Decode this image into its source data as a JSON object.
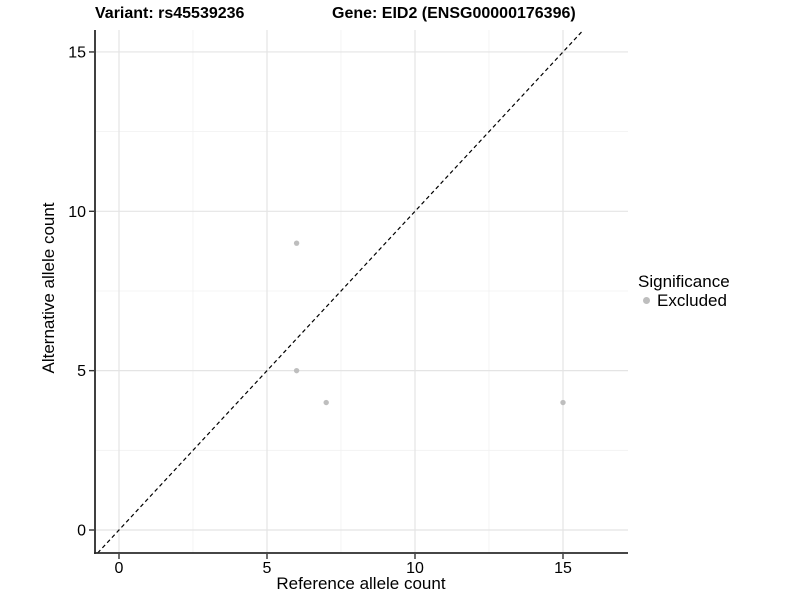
{
  "title": {
    "variant": "Variant: rs45539236",
    "gene": "Gene: EID2 (ENSG00000176396)"
  },
  "axes": {
    "x_label": "Reference allele count",
    "y_label": "Alternative allele count"
  },
  "legend": {
    "title": "Significance",
    "items": [
      {
        "label": "Excluded",
        "color": "#BEBEBE"
      }
    ]
  },
  "chart_data": {
    "type": "scatter",
    "title": "Variant: rs45539236   Gene: EID2 (ENSG00000176396)",
    "xlabel": "Reference allele count",
    "ylabel": "Alternative allele count",
    "x_ticks": [
      0,
      5,
      10,
      15
    ],
    "y_ticks": [
      0,
      5,
      10,
      15
    ],
    "x_minor_ticks": [
      2.5,
      7.5,
      12.5
    ],
    "y_minor_ticks": [
      2.5,
      7.5,
      12.5
    ],
    "xlim": [
      -0.8,
      17.2
    ],
    "ylim": [
      -0.72,
      15.7
    ],
    "grid": true,
    "legend_position": "right",
    "series": [
      {
        "name": "Excluded",
        "color": "#BEBEBE",
        "points": [
          {
            "x": 6,
            "y": 9
          },
          {
            "x": 6,
            "y": 5
          },
          {
            "x": 7,
            "y": 4
          },
          {
            "x": 15,
            "y": 4
          }
        ]
      }
    ],
    "reference_line": {
      "slope": 1,
      "intercept": 0,
      "style": "dashed",
      "color": "#000000"
    }
  },
  "colors": {
    "background": "#FFFFFF",
    "point": "#BEBEBE",
    "grid_major": "#E4E4E4",
    "grid_minor": "#F1F1F1",
    "axis_line": "#2B2B2B",
    "tick_mark": "#333333",
    "text": "#000000"
  }
}
